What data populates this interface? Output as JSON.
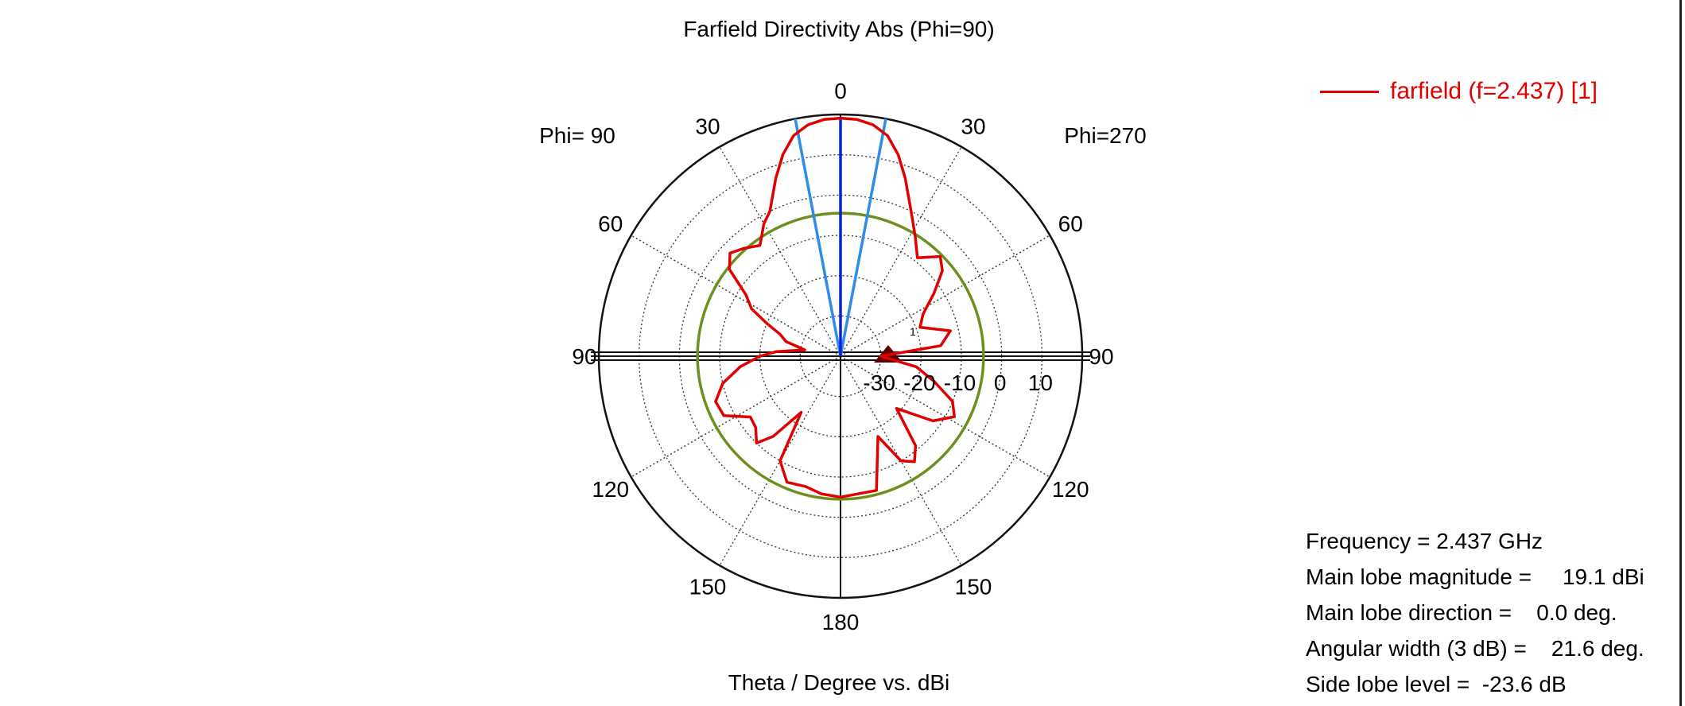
{
  "title": "Farfield Directivity Abs (Phi=90)",
  "xlabel": "Theta / Degree vs. dBi",
  "phi_left_label": "Phi= 90",
  "phi_right_label": "Phi=270",
  "legend_label": "farfield (f=2.437) [1]",
  "colors": {
    "trace": "#e00000",
    "main_lobe_line": "#0a20d8",
    "beam_width_line": "#2e8de8",
    "side_lobe_circle": "#6e8f1e"
  },
  "info": {
    "frequency": "Frequency = 2.437 GHz",
    "main_lobe_magnitude": "Main lobe magnitude =     19.1 dBi",
    "main_lobe_direction": "Main lobe direction =    0.0 deg.",
    "angular_width": "Angular width (3 dB) =    21.6 deg.",
    "side_lobe_level": "Side lobe level =  -23.6 dB"
  },
  "chart_data": {
    "type": "polar-line",
    "title": "Farfield Directivity Abs (Phi=90)",
    "xlabel": "Theta / Degree vs. dBi",
    "r_range": [
      -40,
      20
    ],
    "r_ticks": [
      -30,
      -20,
      -10,
      0,
      10
    ],
    "angle_tick_labels": [
      "0",
      "30",
      "60",
      "90",
      "120",
      "150",
      "180",
      "150",
      "120",
      "90",
      "60",
      "30"
    ],
    "grid": true,
    "legend_position": "top-right",
    "series": [
      {
        "name": "farfield (f=2.437) [1]",
        "theta_deg": [
          -180,
          -165,
          -155,
          -150,
          -145,
          -140,
          -133,
          -125,
          -118,
          -112,
          -105,
          -98,
          -90,
          -84,
          -77,
          -70,
          -63,
          -56,
          -50,
          -45,
          -38,
          -32,
          -26,
          -20,
          -16,
          -12,
          -8,
          -4,
          0,
          4,
          8,
          12,
          16,
          20,
          26,
          30,
          36,
          42,
          47,
          52,
          57,
          62,
          66,
          70,
          75,
          80,
          86,
          90,
          96,
          103,
          110,
          117,
          124,
          130,
          136,
          140,
          145,
          150,
          157,
          165,
          172,
          180
        ],
        "directivity_dbi": [
          -5.0,
          -5.5,
          -18.0,
          -10.0,
          -8.0,
          -11.0,
          -21.0,
          -12.0,
          -8.0,
          -10.0,
          -16.0,
          -21.0,
          -30.0,
          -15.0,
          -12.0,
          -19.0,
          -17.0,
          -12.0,
          -7.0,
          -5.0,
          -9.0,
          -5.0,
          0.0,
          7.0,
          12.0,
          16.0,
          18.0,
          18.9,
          19.1,
          18.9,
          18.0,
          16.0,
          12.0,
          7.0,
          0.0,
          -2.0,
          -6.0,
          -4.0,
          -2.5,
          -5.0,
          -12.0,
          -15.0,
          -20.0,
          -24.0,
          -26.0,
          -31.0,
          -24.0,
          -20.0,
          -15.0,
          -10.0,
          -7.0,
          -7.5,
          -13.0,
          -12.5,
          -10.0,
          -14.0,
          -23.0,
          -10.0,
          -6.0,
          -6.5,
          -5.5,
          -5.0
        ]
      }
    ],
    "main_lobe_direction_deg": 0.0,
    "main_lobe_magnitude_dbi": 19.1,
    "angular_width_3db_deg": 21.6,
    "side_lobe_level_db": -23.6,
    "marker_label": "1"
  }
}
